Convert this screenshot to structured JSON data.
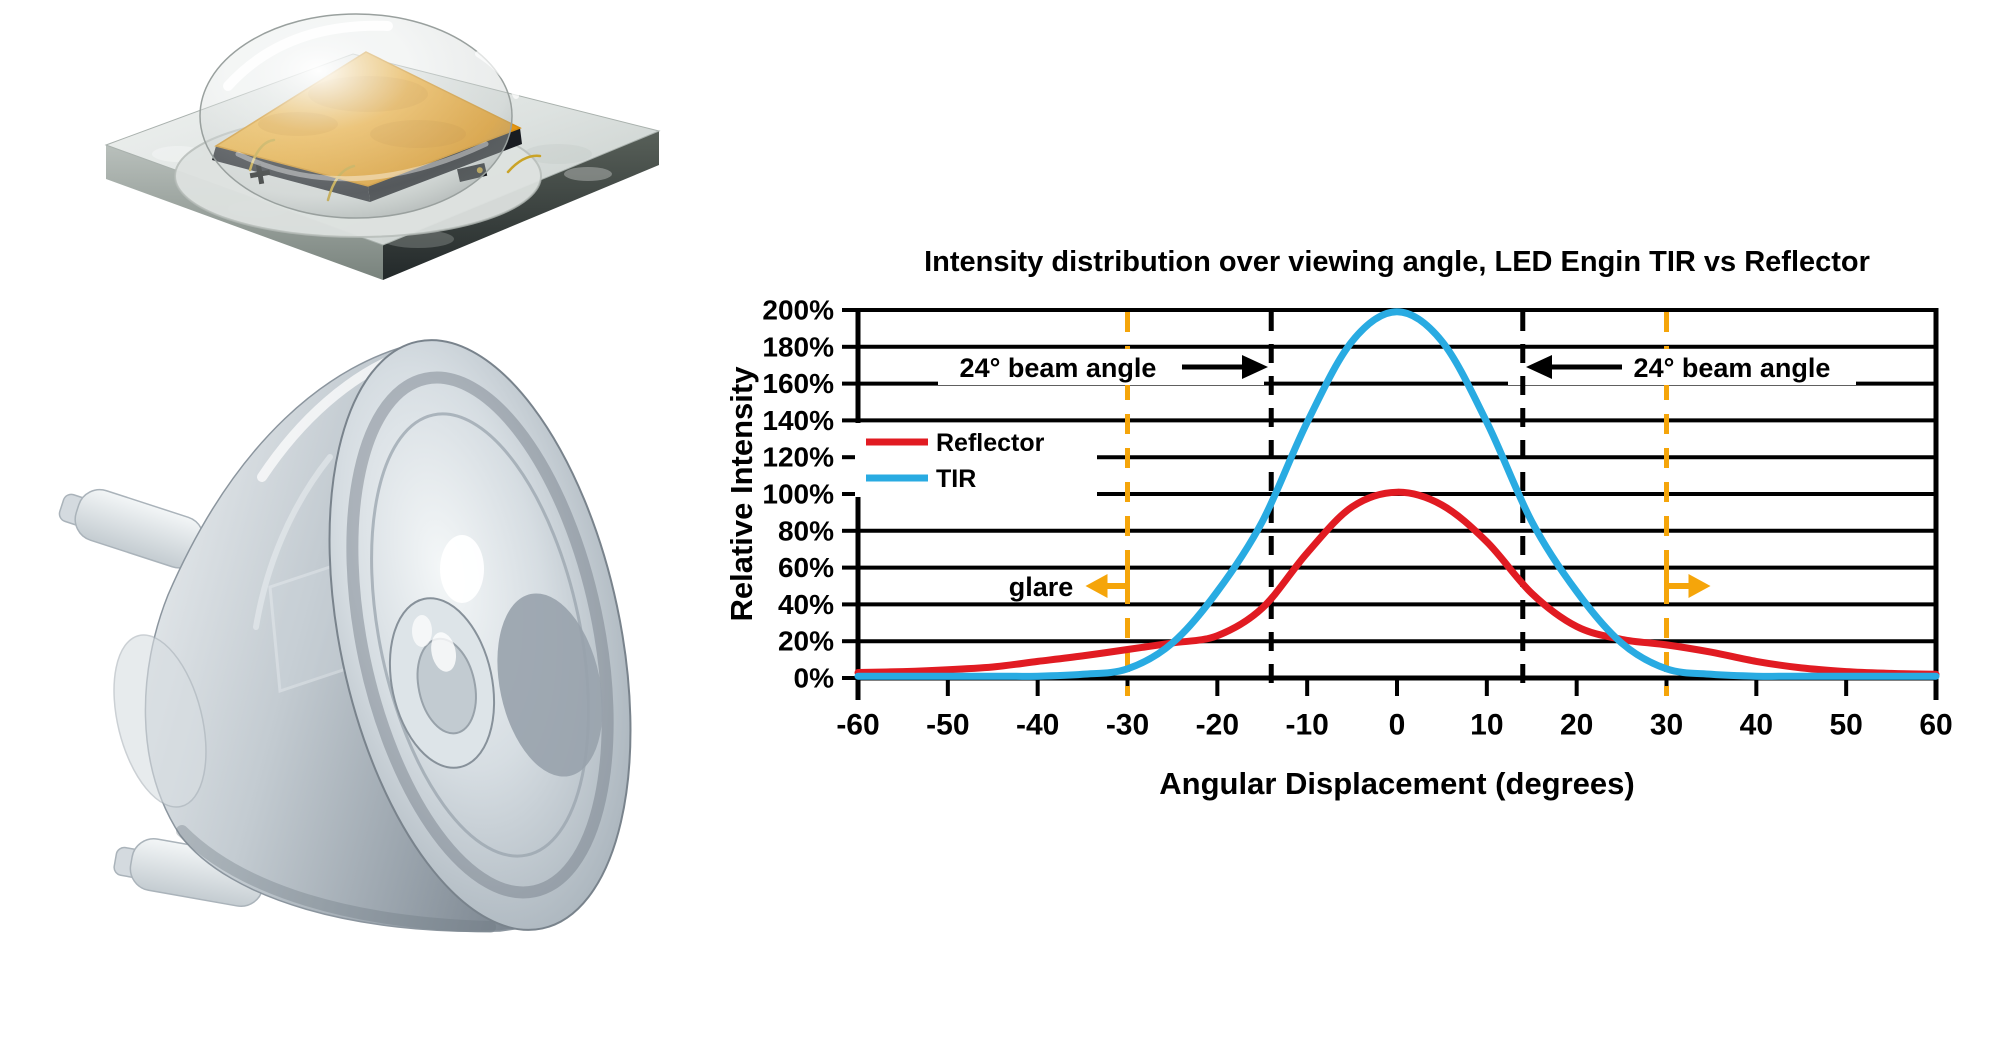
{
  "figures": {
    "led_emitter": {
      "alt": "High-power LED emitter package with amber phosphor die under a clear hemispherical dome lens on a ceramic substrate"
    },
    "tir_lens": {
      "alt": "Clear plastic TIR collimating lens with mounting legs"
    }
  },
  "chart_data": {
    "type": "line",
    "title": "Intensity distribution over viewing angle, LED Engin TIR vs Reflector",
    "xlabel": "Angular Displacement (degrees)",
    "ylabel": "Relative Intensity",
    "xlim": [
      -60,
      60
    ],
    "ylim_pct": [
      0,
      200
    ],
    "grid": "horizontal-only",
    "legend_position": "upper-left-inside",
    "x_ticks": [
      -60,
      -50,
      -40,
      -30,
      -20,
      -10,
      0,
      10,
      20,
      30,
      40,
      50,
      60
    ],
    "y_ticks_pct": [
      0,
      20,
      40,
      60,
      80,
      100,
      120,
      140,
      160,
      180,
      200
    ],
    "y_tick_suffix": "%",
    "x": [
      -60,
      -55,
      -50,
      -45,
      -40,
      -35,
      -30,
      -25,
      -20,
      -15,
      -10,
      -5,
      0,
      5,
      10,
      15,
      20,
      25,
      30,
      35,
      40,
      45,
      50,
      55,
      60
    ],
    "series": [
      {
        "name": "Reflector",
        "color": "#E11B22",
        "values": [
          3,
          3.5,
          4.5,
          6,
          9,
          12,
          15.5,
          19,
          23,
          38,
          68,
          93,
          101,
          94,
          74,
          46,
          28,
          21,
          18,
          14,
          9,
          5.5,
          3.5,
          2.5,
          2
        ]
      },
      {
        "name": "TIR",
        "color": "#29ABE2",
        "values": [
          1,
          1,
          1,
          1,
          1,
          2,
          5,
          19,
          47,
          85,
          139,
          183,
          199,
          183,
          139,
          85,
          47,
          19,
          5,
          2,
          1,
          1,
          1,
          1,
          1
        ]
      }
    ],
    "annotations": {
      "beam": {
        "label": "24° beam angle",
        "line_xs": [
          -14,
          14
        ],
        "line_style": "dashed",
        "line_color": "#000000"
      },
      "glare": {
        "label": "glare",
        "line_xs": [
          -30,
          30
        ],
        "line_style": "dashed",
        "line_color": "#F5A50A"
      }
    },
    "colors": {
      "axis": "#000000",
      "grid": "#000000",
      "background": "#FFFFFF"
    }
  }
}
